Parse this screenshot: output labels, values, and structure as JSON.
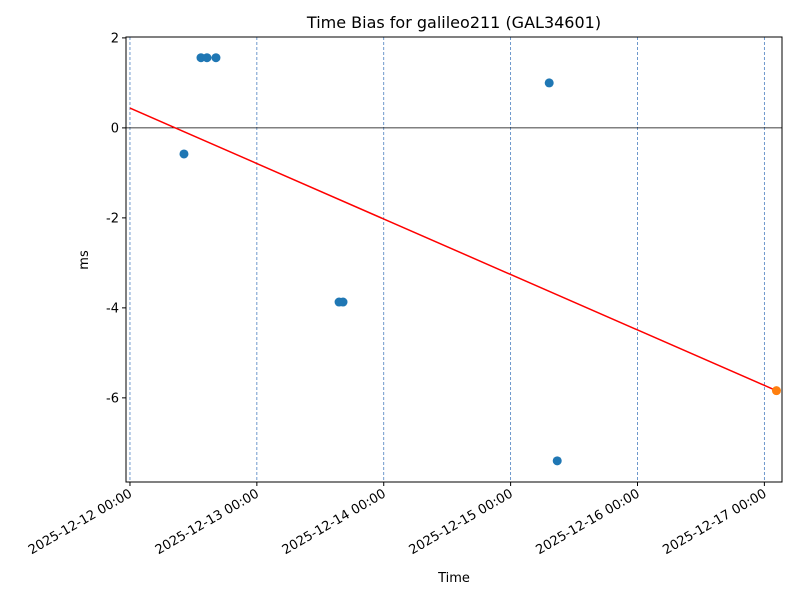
{
  "chart_data": {
    "type": "scatter",
    "title": "Time Bias for galileo211 (GAL34601)",
    "x_label": "Time",
    "y_label": "ms",
    "xlim": [
      "2025-12-11 23:15",
      "2025-12-17 03:20"
    ],
    "xticks": [
      "2025-12-12 00:00",
      "2025-12-13 00:00",
      "2025-12-14 00:00",
      "2025-12-15 00:00",
      "2025-12-16 00:00",
      "2025-12-17 00:00"
    ],
    "ylim": [
      -7.87,
      2.02
    ],
    "yticks": [
      -6,
      -4,
      -2,
      0,
      2
    ],
    "vertical_grid": true,
    "grid_color": "#4a7fc0",
    "hline": {
      "value": 0,
      "color": "#000000"
    },
    "series": [
      {
        "color": "#1f77b4",
        "x": [
          "2025-12-12 10:13",
          "2025-12-12 13:26",
          "2025-12-12 14:34",
          "2025-12-12 16:16",
          "2025-12-13 15:33",
          "2025-12-13 16:18",
          "2025-12-15 07:18",
          "2025-12-15 08:49"
        ],
        "values": [
          -0.58,
          1.56,
          1.56,
          1.56,
          -3.87,
          -3.87,
          1.0,
          -7.4
        ]
      },
      {
        "color": "#ff7f0e",
        "x": [
          "2025-12-17 02:17"
        ],
        "values": [
          -5.84
        ]
      }
    ],
    "trend_line": {
      "color": "#ff0000",
      "x": [
        "2025-12-12 00:00",
        "2025-12-17 02:17"
      ],
      "values": [
        0.44,
        -5.84
      ]
    }
  }
}
